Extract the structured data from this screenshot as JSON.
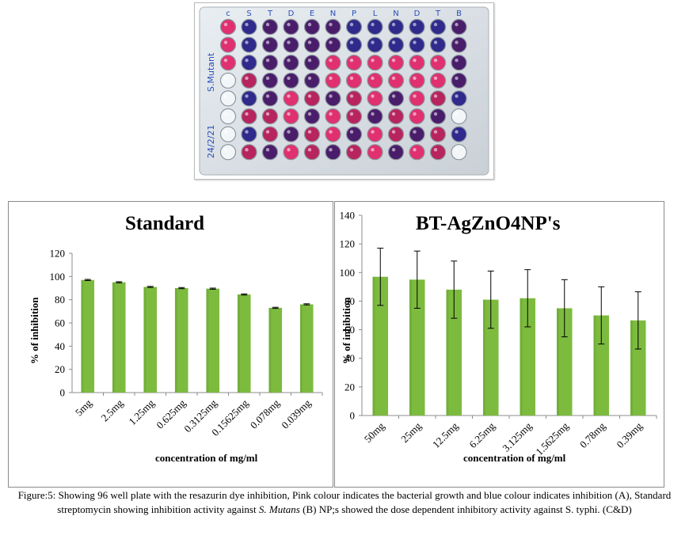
{
  "plate": {
    "column_labels": [
      "c",
      "S",
      "T",
      "D",
      "E",
      "N",
      "P",
      "L",
      "N",
      "D",
      "T",
      "B"
    ],
    "handwriting_side": "S.Mutant",
    "handwriting_date": "24/2/21"
  },
  "colors": {
    "bar": "#7dbb3f",
    "bar_dark": "#5c9a2a",
    "axis": "#8c8c8c"
  },
  "chart_data": [
    {
      "type": "bar",
      "title": "Standard",
      "xlabel": "concentration of mg/ml",
      "ylabel": "% of inhibition",
      "categories": [
        "5mg",
        "2.5mg",
        "1.25mg",
        "0.625mg",
        "0.3125mg",
        "0.15625mg",
        "0.078mg",
        "0.039mg"
      ],
      "values": [
        97,
        95,
        91,
        90,
        89.5,
        84.5,
        73,
        76
      ],
      "errors": [
        0.5,
        0.5,
        0.5,
        0.5,
        0.5,
        0.5,
        0.5,
        0.5
      ],
      "ylim": [
        0,
        120
      ],
      "yticks": [
        0,
        20,
        40,
        60,
        80,
        100,
        120
      ],
      "grid": false
    },
    {
      "type": "bar",
      "title": "BT-AgZnO4NP's",
      "xlabel": "concentration of mg/ml",
      "ylabel": "% of inhibition",
      "categories": [
        "50mg",
        "25mg",
        "12.5mg",
        "6.25mg",
        "3.125mg",
        "1.5625mg",
        "0.78mg",
        "0.39mg"
      ],
      "values": [
        97,
        95,
        88,
        81,
        82,
        75,
        70,
        66.5
      ],
      "errors": [
        20,
        20,
        20,
        20,
        20,
        20,
        20,
        20
      ],
      "ylim": [
        0,
        140
      ],
      "yticks": [
        0,
        20,
        40,
        60,
        80,
        100,
        120,
        140
      ],
      "grid": false
    }
  ],
  "caption": {
    "part1": "Figure:5: Showing 96 well plate with the resazurin dye inhibition, Pink colour indicates the bacterial growth and blue colour indicates inhibition (A), Standard streptomycin showing inhibition activity against ",
    "organism": "S. Mutans",
    "part2": " (B) NP;s showed the dose dependent inhibitory activity against S. typhi. (C&D)"
  }
}
